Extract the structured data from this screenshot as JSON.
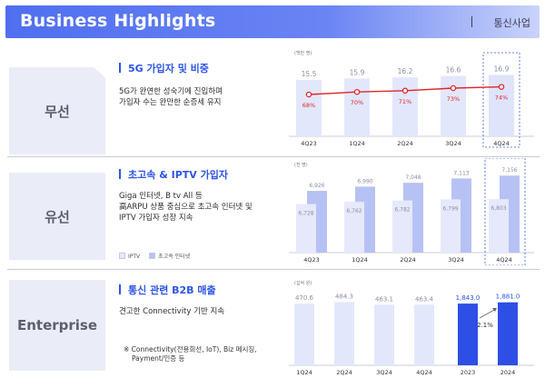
{
  "header": {
    "title": "Business Highlights",
    "segment": "통신사업"
  },
  "wireless": {
    "label": "무선",
    "title": "5G 가입자 및 비중",
    "desc_line1": "5G가 완연한 성숙기에 진입하며",
    "desc_line2": "가입자 수는 완만한 순증세 유지",
    "chart_unit": "(백만 명)"
  },
  "wired": {
    "label": "유선",
    "title": "초고속 & IPTV 가입자",
    "desc_line1": "Giga 인터넷, B tv All 등",
    "desc_line2": "高ARPU 상품 중심으로 초고속 인터넷 및",
    "desc_line3": "IPTV 가입자 성장 지속",
    "chart_unit": "(천 명)",
    "legend_iptv": "IPTV",
    "legend_internet": "초고속 인터넷"
  },
  "enterprise": {
    "label": "Enterprise",
    "title": "통신 관련 B2B 매출",
    "desc_line1": "견고한 Connectivity 기반 지속",
    "note_line1": "※ Connectivity(전용회선, IoT), Biz 메시징,",
    "note_line2": "Payment/인증 등",
    "chart_unit": "(십억 원)",
    "growth_label": "2.1%"
  },
  "chart_data": [
    {
      "type": "bar",
      "categories": [
        "4Q23",
        "1Q24",
        "2Q24",
        "3Q24",
        "4Q24"
      ],
      "series": [
        {
          "name": "5G 가입자",
          "values": [
            15.5,
            15.9,
            16.2,
            16.6,
            16.9
          ]
        },
        {
          "name": "5G 비중",
          "values": [
            68,
            70,
            71,
            73,
            74
          ],
          "unit": "%",
          "render": "line"
        }
      ],
      "ylabel": "(백만 명)",
      "highlight": "4Q24",
      "colors": {
        "bar": "#e3e7fb",
        "bar_highlight": "#dfe4fb",
        "line": "#e0262a",
        "value": "#8a8ea6",
        "pct": "#e0262a"
      }
    },
    {
      "type": "bar",
      "categories": [
        "4Q23",
        "1Q24",
        "2Q24",
        "3Q24",
        "4Q24"
      ],
      "series": [
        {
          "name": "초고속 인터넷",
          "values": [
            6926,
            6990,
            7048,
            7113,
            7156
          ]
        },
        {
          "name": "IPTV",
          "values": [
            6728,
            6762,
            6782,
            6799,
            6803
          ]
        }
      ],
      "ylabel": "(천 명)",
      "highlight": "4Q24",
      "colors": {
        "internet": "#b7c2f4",
        "iptv": "#e6e9fb"
      }
    },
    {
      "type": "bar",
      "categories": [
        "1Q24",
        "2Q24",
        "3Q24",
        "4Q24",
        "2023",
        "2024"
      ],
      "values": [
        470.6,
        484.3,
        463.1,
        463.4,
        1843.0,
        1881.0
      ],
      "value_labels": [
        "470.6",
        "484.3",
        "463.1",
        "463.4",
        "1,843.0",
        "1,881.0"
      ],
      "ylabel": "(십억 원)",
      "colors": {
        "quarter": "#e3e7fb",
        "annual": "#2d4fe6",
        "annual_label": "#2d4fe6"
      }
    }
  ]
}
